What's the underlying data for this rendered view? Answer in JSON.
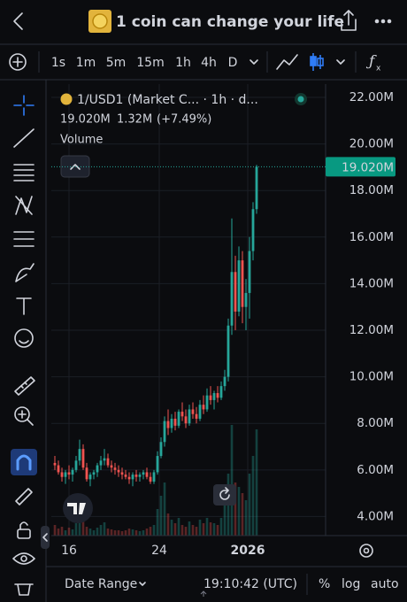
{
  "header": {
    "title": "1 coin can change your life"
  },
  "toolbar": {
    "intervals": [
      "1s",
      "1m",
      "5m",
      "15m",
      "1h",
      "4h",
      "D"
    ],
    "active_interval": "1h"
  },
  "chart_data": {
    "type": "candlestick",
    "symbol": "1/USD1 (Market C... · 1h · d...",
    "change": "1.32M",
    "change_pct": "(+7.49%)",
    "volume_label": "Volume",
    "up_color": "#26a69a",
    "down_color": "#ef5350",
    "last_price": {
      "value": 19.02,
      "label": "19.020M"
    },
    "ylim": [
      3.18,
      22.57
    ],
    "yticks": [
      {
        "value": 22,
        "label": "22.00M"
      },
      {
        "value": 20,
        "label": "20.00M"
      },
      {
        "value": 18,
        "label": "18.00M"
      },
      {
        "value": 16,
        "label": "16.00M"
      },
      {
        "value": 14,
        "label": "14.00M"
      },
      {
        "value": 12,
        "label": "12.00M"
      },
      {
        "value": 10,
        "label": "10.00M"
      },
      {
        "value": 8,
        "label": "8.00M"
      },
      {
        "value": 6,
        "label": "6.00M"
      },
      {
        "value": 4,
        "label": "4.00M"
      }
    ],
    "xticks": [
      {
        "value": 4,
        "label": "16"
      },
      {
        "value": 29.5,
        "label": "24"
      },
      {
        "value": 54.5,
        "label": "2026"
      }
    ],
    "grid": true,
    "candles": [
      [
        6.3,
        6.6,
        6.0,
        6.2
      ],
      [
        6.2,
        6.4,
        5.8,
        5.9
      ],
      [
        5.9,
        6.1,
        5.5,
        5.7
      ],
      [
        5.7,
        6.0,
        5.4,
        5.9
      ],
      [
        5.9,
        6.2,
        5.6,
        5.8
      ],
      [
        5.8,
        6.1,
        5.5,
        6.0
      ],
      [
        6.0,
        6.6,
        5.9,
        6.4
      ],
      [
        6.4,
        7.3,
        6.2,
        6.9
      ],
      [
        6.9,
        7.1,
        6.0,
        6.1
      ],
      [
        6.1,
        6.3,
        5.5,
        5.6
      ],
      [
        5.6,
        5.9,
        5.3,
        5.8
      ],
      [
        5.8,
        6.0,
        5.6,
        5.9
      ],
      [
        5.9,
        6.3,
        5.7,
        6.2
      ],
      [
        6.2,
        6.6,
        6.0,
        6.4
      ],
      [
        6.4,
        6.9,
        6.2,
        6.5
      ],
      [
        6.5,
        6.7,
        6.1,
        6.2
      ],
      [
        6.2,
        6.4,
        5.9,
        6.1
      ],
      [
        6.1,
        6.3,
        5.8,
        6.0
      ],
      [
        6.0,
        6.2,
        5.7,
        5.9
      ],
      [
        5.9,
        6.1,
        5.6,
        5.8
      ],
      [
        5.8,
        6.0,
        5.6,
        5.7
      ],
      [
        5.7,
        5.9,
        5.4,
        5.6
      ],
      [
        5.6,
        5.9,
        5.3,
        5.8
      ],
      [
        5.8,
        6.0,
        5.5,
        5.7
      ],
      [
        5.7,
        5.9,
        5.5,
        5.8
      ],
      [
        5.8,
        6.0,
        5.6,
        5.9
      ],
      [
        5.9,
        6.1,
        5.6,
        5.7
      ],
      [
        5.7,
        5.9,
        5.4,
        5.5
      ],
      [
        5.5,
        6.0,
        5.4,
        5.9
      ],
      [
        5.9,
        6.8,
        5.8,
        6.6
      ],
      [
        6.6,
        7.4,
        6.5,
        7.2
      ],
      [
        7.2,
        8.3,
        7.0,
        8.1
      ],
      [
        8.1,
        8.6,
        7.5,
        7.8
      ],
      [
        7.8,
        8.4,
        7.6,
        8.2
      ],
      [
        8.2,
        8.5,
        7.7,
        7.9
      ],
      [
        7.9,
        8.6,
        7.8,
        8.5
      ],
      [
        8.5,
        8.9,
        8.1,
        8.3
      ],
      [
        8.3,
        8.6,
        7.8,
        8.0
      ],
      [
        8.0,
        8.8,
        7.9,
        8.6
      ],
      [
        8.6,
        8.9,
        8.2,
        8.4
      ],
      [
        8.4,
        8.7,
        8.0,
        8.2
      ],
      [
        8.2,
        9.0,
        8.1,
        8.8
      ],
      [
        8.8,
        9.2,
        8.4,
        8.6
      ],
      [
        8.6,
        9.5,
        8.5,
        9.2
      ],
      [
        9.2,
        9.6,
        8.8,
        9.0
      ],
      [
        9.0,
        9.4,
        8.6,
        9.3
      ],
      [
        9.3,
        9.6,
        8.9,
        9.1
      ],
      [
        9.1,
        9.8,
        9.0,
        9.6
      ],
      [
        9.6,
        10.3,
        9.4,
        10.0
      ],
      [
        10.0,
        12.5,
        9.8,
        12.2
      ],
      [
        12.2,
        16.8,
        11.8,
        14.5
      ],
      [
        14.5,
        15.2,
        12.0,
        12.8
      ],
      [
        12.8,
        15.6,
        12.6,
        15.0
      ],
      [
        15.0,
        15.4,
        12.3,
        13.0
      ],
      [
        13.0,
        14.2,
        12.0,
        13.6
      ],
      [
        13.6,
        16.0,
        12.5,
        15.4
      ],
      [
        15.4,
        17.5,
        15.0,
        17.2
      ],
      [
        17.2,
        19.1,
        17.0,
        19.02
      ]
    ],
    "volume": [
      12,
      8,
      10,
      6,
      9,
      7,
      14,
      40,
      22,
      10,
      8,
      6,
      9,
      12,
      15,
      8,
      7,
      6,
      6,
      5,
      6,
      8,
      7,
      6,
      5,
      6,
      8,
      10,
      12,
      30,
      45,
      60,
      25,
      18,
      14,
      20,
      12,
      10,
      16,
      12,
      10,
      18,
      14,
      20,
      15,
      14,
      12,
      20,
      35,
      70,
      125,
      60,
      55,
      48,
      40,
      70,
      90,
      120
    ]
  },
  "bottom_bar": {
    "date_range": "Date Range",
    "time": "19:10:42 (UTC)",
    "percent": "%",
    "log": "log",
    "auto": "auto"
  }
}
